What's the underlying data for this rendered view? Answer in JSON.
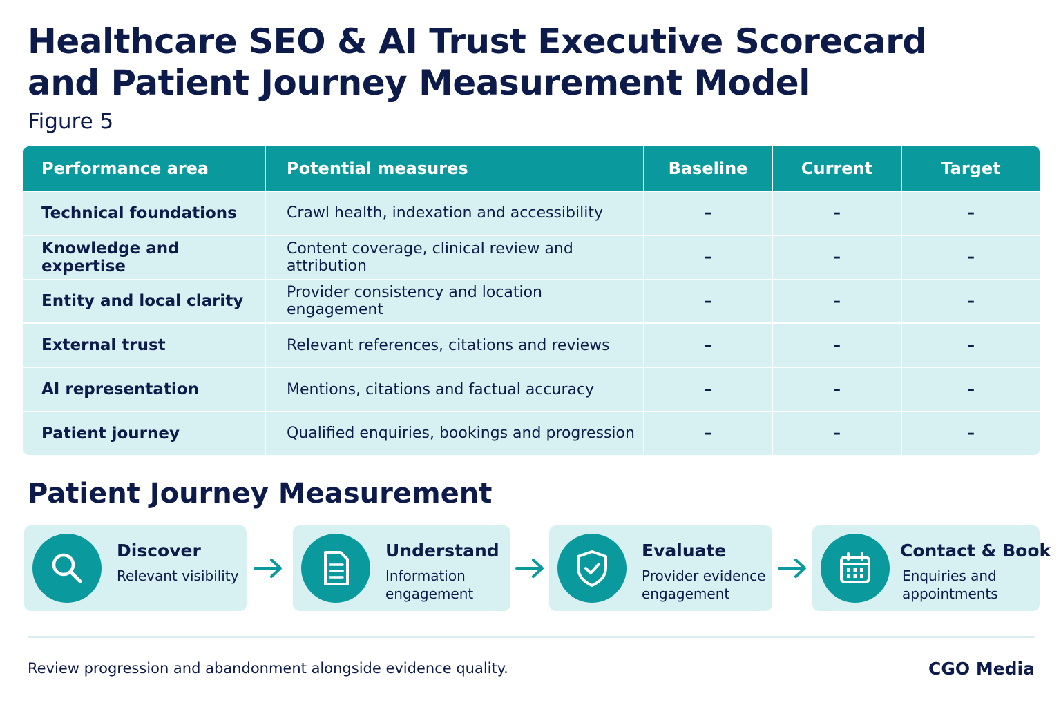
{
  "header": {
    "title_line1": "Healthcare SEO & AI Trust Executive Scorecard",
    "title_line2": "and Patient Journey Measurement Model",
    "figure_label": "Figure 5"
  },
  "table": {
    "columns": [
      "Performance area",
      "Potential measures",
      "Baseline",
      "Current",
      "Target"
    ],
    "rows": [
      {
        "area": "Technical foundations",
        "measures": "Crawl health, indexation and accessibility",
        "baseline": "–",
        "current": "–",
        "target": "–"
      },
      {
        "area": "Knowledge and expertise",
        "measures": "Content coverage, clinical review and attribution",
        "baseline": "–",
        "current": "–",
        "target": "–"
      },
      {
        "area": "Entity and local clarity",
        "measures": "Provider consistency and location engagement",
        "baseline": "–",
        "current": "–",
        "target": "–"
      },
      {
        "area": "External trust",
        "measures": "Relevant references, citations and reviews",
        "baseline": "–",
        "current": "–",
        "target": "–"
      },
      {
        "area": "AI representation",
        "measures": "Mentions, citations and factual accuracy",
        "baseline": "–",
        "current": "–",
        "target": "–"
      },
      {
        "area": "Patient journey",
        "measures": "Qualified enquiries, bookings and progression",
        "baseline": "–",
        "current": "–",
        "target": "–"
      }
    ]
  },
  "journey": {
    "title": "Patient Journey Measurement",
    "steps": [
      {
        "title": "Discover",
        "desc_line1": "Relevant visibility",
        "desc_line2": "",
        "icon": "search-icon"
      },
      {
        "title": "Understand",
        "desc_line1": "Information",
        "desc_line2": "engagement",
        "icon": "document-icon"
      },
      {
        "title": "Evaluate",
        "desc_line1": "Provider evidence",
        "desc_line2": "engagement",
        "icon": "shield-check-icon"
      },
      {
        "title": "Contact & Book",
        "desc_line1": "Enquiries and",
        "desc_line2": "appointments",
        "icon": "calendar-icon"
      }
    ]
  },
  "footer": {
    "note": "Review progression and abandonment alongside evidence quality.",
    "brand": "CGO Media"
  },
  "colors": {
    "navy": "#0d1b4a",
    "teal": "#0a9a9e",
    "light_teal": "#d7f1f2"
  }
}
